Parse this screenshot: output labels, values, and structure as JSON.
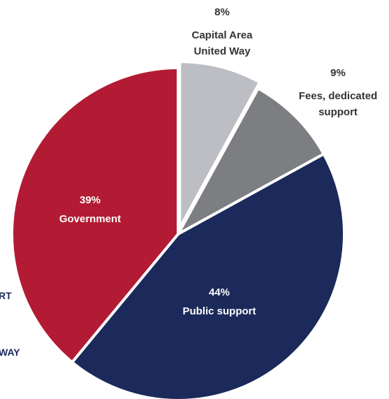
{
  "chart_data": {
    "type": "pie",
    "slices": [
      {
        "label_lines": [
          "Capital Area",
          "United Way"
        ],
        "percent_text": "8%",
        "value": 8,
        "color": "#bcbec3"
      },
      {
        "label_lines": [
          "Fees, dedicated",
          "support"
        ],
        "percent_text": "9%",
        "value": 9,
        "color": "#7d7e82"
      },
      {
        "label_lines": [
          "Public support"
        ],
        "percent_text": "44%",
        "value": 44,
        "color": "#1b2a5a"
      },
      {
        "label_lines": [
          "Government"
        ],
        "percent_text": "39%",
        "value": 39,
        "color": "#b31b34"
      }
    ]
  },
  "legend_fragments": {
    "upper": "RT",
    "lower": "WAY"
  },
  "colors": {
    "separator": "#ffffff",
    "legend_text": "#1b2a5a"
  }
}
